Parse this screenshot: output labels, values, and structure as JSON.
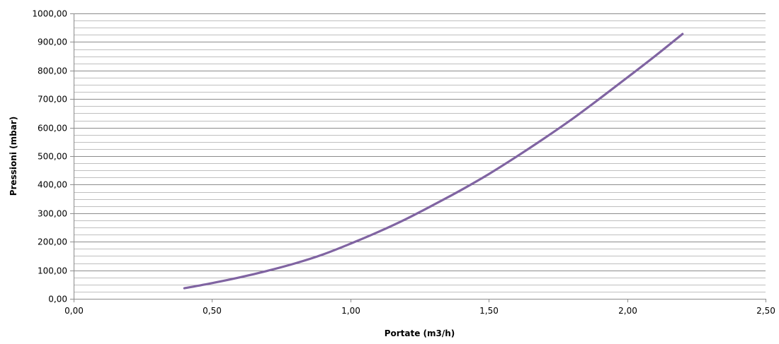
{
  "chart_data": {
    "type": "line",
    "title": "",
    "xlabel": "Portate (m3/h)",
    "ylabel": "Pressioni (mbar)",
    "xlim": [
      0,
      2.5
    ],
    "ylim": [
      0,
      1000
    ],
    "grid": true,
    "minor_grid": true,
    "legend": "none",
    "x_ticks": [
      "0,00",
      "0,50",
      "1,00",
      "1,50",
      "2,00",
      "2,50"
    ],
    "y_ticks": [
      "0,00",
      "100,00",
      "200,00",
      "300,00",
      "400,00",
      "500,00",
      "600,00",
      "700,00",
      "800,00",
      "900,00",
      "1000,00"
    ],
    "series": [
      {
        "color": "#8064A2",
        "x": [
          0.4,
          0.5,
          0.6,
          0.7,
          0.8,
          0.9,
          1.0,
          1.1,
          1.2,
          1.3,
          1.4,
          1.5,
          1.6,
          1.7,
          1.8,
          1.9,
          2.0,
          2.1,
          2.2
        ],
        "y": [
          37,
          55,
          75,
          98,
          124,
          155,
          193,
          234,
          279,
          329,
          381,
          437,
          498,
          562,
          629,
          701,
          775,
          850,
          928
        ]
      }
    ]
  }
}
